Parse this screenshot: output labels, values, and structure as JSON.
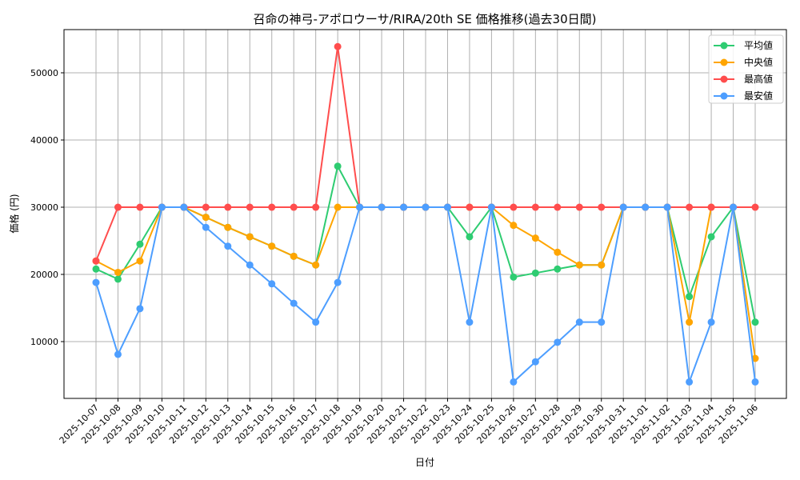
{
  "chart_data": {
    "type": "line",
    "title": "召命の神弓-アポロウーサ/RIRA/20th SE 価格推移(過去30日間)",
    "xlabel": "日付",
    "ylabel": "価格 (円)",
    "ylim": [
      1548,
      56430
    ],
    "yticks": [
      10000,
      20000,
      30000,
      40000,
      50000
    ],
    "grid": true,
    "legend_position": "top-right",
    "x": [
      "2025-10-07",
      "2025-10-08",
      "2025-10-09",
      "2025-10-10",
      "2025-10-11",
      "2025-10-12",
      "2025-10-13",
      "2025-10-14",
      "2025-10-15",
      "2025-10-16",
      "2025-10-17",
      "2025-10-18",
      "2025-10-19",
      "2025-10-20",
      "2025-10-21",
      "2025-10-22",
      "2025-10-23",
      "2025-10-24",
      "2025-10-25",
      "2025-10-26",
      "2025-10-27",
      "2025-10-28",
      "2025-10-29",
      "2025-10-30",
      "2025-10-31",
      "2025-11-01",
      "2025-11-02",
      "2025-11-03",
      "2025-11-04",
      "2025-11-05",
      "2025-11-06"
    ],
    "series": [
      {
        "name": "平均値",
        "color": "#2ecc71",
        "values": [
          20800,
          19300,
          24500,
          30000,
          30000,
          28500,
          27000,
          25600,
          24200,
          22700,
          21400,
          36100,
          30000,
          30000,
          30000,
          30000,
          30000,
          25600,
          30000,
          19600,
          20200,
          20800,
          21400,
          21400,
          30000,
          30000,
          30000,
          16700,
          25600,
          30000,
          12900
        ]
      },
      {
        "name": "中央値",
        "color": "#ffa500",
        "values": [
          22000,
          20300,
          22000,
          30000,
          30000,
          28500,
          27000,
          25600,
          24200,
          22700,
          21400,
          30000,
          30000,
          30000,
          30000,
          30000,
          30000,
          30000,
          30000,
          27300,
          25400,
          23300,
          21400,
          21400,
          30000,
          30000,
          30000,
          12900,
          30000,
          30000,
          7500
        ]
      },
      {
        "name": "最高値",
        "color": "#ff4d4d",
        "values": [
          22000,
          30000,
          30000,
          30000,
          30000,
          30000,
          30000,
          30000,
          30000,
          30000,
          30000,
          53900,
          30000,
          30000,
          30000,
          30000,
          30000,
          30000,
          30000,
          30000,
          30000,
          30000,
          30000,
          30000,
          30000,
          30000,
          30000,
          30000,
          30000,
          30000,
          30000
        ]
      },
      {
        "name": "最安値",
        "color": "#4d9eff",
        "values": [
          18800,
          8100,
          14900,
          30000,
          30000,
          27000,
          24200,
          21400,
          18600,
          15700,
          12900,
          18800,
          30000,
          30000,
          30000,
          30000,
          30000,
          12900,
          30000,
          4000,
          7000,
          9900,
          12900,
          12900,
          30000,
          30000,
          30000,
          4000,
          12900,
          30000,
          4000
        ]
      }
    ]
  }
}
